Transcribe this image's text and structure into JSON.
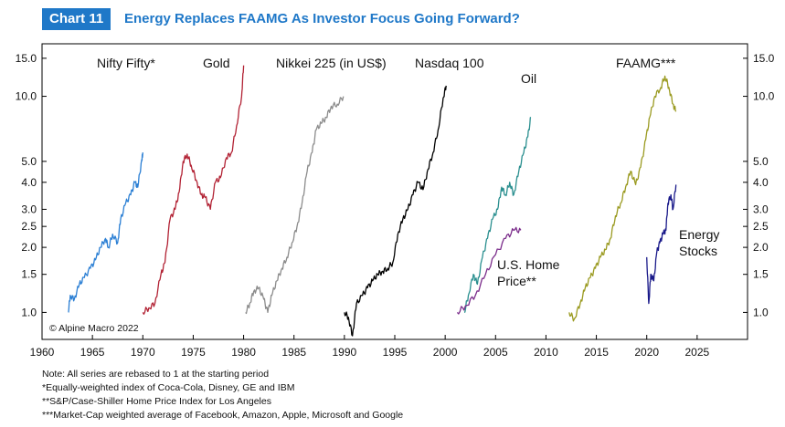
{
  "header": {
    "chart_label": "Chart 11",
    "title": "Energy Replaces FAAMG As Investor Focus Going Forward?"
  },
  "copyright": "© Alpine Macro 2022",
  "notes": [
    "Note: All series are rebased to 1 at the starting period",
    "*Equally-weighted index of Coca-Cola, Disney, GE and IBM",
    "**S&P/Case-Shiller Home Price Index for Los Angeles",
    "***Market-Cap weighted average of Facebook, Amazon, Apple, Microsoft and Google"
  ],
  "chart_data": {
    "type": "line",
    "x_label": "",
    "y_label": "",
    "y_scale": "log",
    "xlim": [
      1960,
      2030
    ],
    "ylim": [
      0.75,
      17.5
    ],
    "x_ticks": [
      1960,
      1965,
      1970,
      1975,
      1980,
      1985,
      1990,
      1995,
      2000,
      2005,
      2010,
      2015,
      2020,
      2025
    ],
    "y_ticks": [
      1.0,
      1.5,
      2.0,
      2.5,
      3.0,
      4.0,
      5.0,
      10.0,
      15.0
    ],
    "y_tick_labels": [
      "1.0",
      "1.5",
      "2.0",
      "2.5",
      "3.0",
      "4.0",
      "5.0",
      "10.0",
      "15.0"
    ],
    "grid": false,
    "legend": "none",
    "series": [
      {
        "name": "Nifty Fifty*",
        "color": "#2b7fd4",
        "points": [
          [
            1962.6,
            1.0
          ],
          [
            1962.8,
            1.2
          ],
          [
            1963.2,
            1.15
          ],
          [
            1963.7,
            1.35
          ],
          [
            1964.2,
            1.45
          ],
          [
            1964.8,
            1.6
          ],
          [
            1965.3,
            1.75
          ],
          [
            1965.8,
            2.0
          ],
          [
            1966.3,
            2.2
          ],
          [
            1966.6,
            2.0
          ],
          [
            1967.0,
            2.3
          ],
          [
            1967.5,
            2.1
          ],
          [
            1967.8,
            2.7
          ],
          [
            1968.3,
            3.2
          ],
          [
            1968.8,
            3.5
          ],
          [
            1969.2,
            4.0
          ],
          [
            1969.5,
            3.8
          ],
          [
            1969.9,
            5.1
          ],
          [
            1970.0,
            5.5
          ]
        ]
      },
      {
        "name": "Gold",
        "color": "#b22234",
        "points": [
          [
            1970.0,
            1.0
          ],
          [
            1970.6,
            1.05
          ],
          [
            1971.2,
            1.1
          ],
          [
            1971.8,
            1.5
          ],
          [
            1972.2,
            1.7
          ],
          [
            1972.7,
            2.7
          ],
          [
            1973.2,
            3.0
          ],
          [
            1973.6,
            3.6
          ],
          [
            1974.0,
            5.0
          ],
          [
            1974.4,
            5.4
          ],
          [
            1974.8,
            4.8
          ],
          [
            1975.3,
            4.1
          ],
          [
            1975.8,
            3.5
          ],
          [
            1976.2,
            3.4
          ],
          [
            1976.7,
            3.0
          ],
          [
            1977.2,
            4.0
          ],
          [
            1977.7,
            4.2
          ],
          [
            1978.3,
            5.2
          ],
          [
            1978.8,
            5.5
          ],
          [
            1979.3,
            7.3
          ],
          [
            1979.8,
            10.0
          ],
          [
            1980.0,
            13.9
          ]
        ]
      },
      {
        "name": "Nikkei 225 (in US$)",
        "color": "#8c8c8c",
        "points": [
          [
            1980.2,
            1.0
          ],
          [
            1980.6,
            1.1
          ],
          [
            1981.0,
            1.25
          ],
          [
            1981.5,
            1.3
          ],
          [
            1982.0,
            1.15
          ],
          [
            1982.4,
            1.0
          ],
          [
            1982.8,
            1.2
          ],
          [
            1983.3,
            1.4
          ],
          [
            1983.8,
            1.6
          ],
          [
            1984.3,
            1.8
          ],
          [
            1984.8,
            2.1
          ],
          [
            1985.3,
            2.5
          ],
          [
            1985.8,
            3.2
          ],
          [
            1986.3,
            4.5
          ],
          [
            1986.8,
            5.5
          ],
          [
            1987.2,
            7.0
          ],
          [
            1987.7,
            7.5
          ],
          [
            1988.2,
            8.0
          ],
          [
            1988.7,
            9.0
          ],
          [
            1989.3,
            9.2
          ],
          [
            1989.9,
            10.0
          ]
        ]
      },
      {
        "name": "Nasdaq 100",
        "color": "#000000",
        "points": [
          [
            1990.0,
            1.0
          ],
          [
            1990.4,
            0.95
          ],
          [
            1990.8,
            0.78
          ],
          [
            1991.2,
            1.1
          ],
          [
            1991.8,
            1.2
          ],
          [
            1992.3,
            1.3
          ],
          [
            1992.8,
            1.4
          ],
          [
            1993.3,
            1.5
          ],
          [
            1993.8,
            1.55
          ],
          [
            1994.3,
            1.6
          ],
          [
            1994.8,
            1.7
          ],
          [
            1995.3,
            2.3
          ],
          [
            1995.8,
            2.7
          ],
          [
            1996.3,
            3.0
          ],
          [
            1996.8,
            3.5
          ],
          [
            1997.3,
            4.0
          ],
          [
            1997.8,
            3.7
          ],
          [
            1998.3,
            4.6
          ],
          [
            1998.8,
            5.5
          ],
          [
            1999.3,
            7.0
          ],
          [
            1999.8,
            9.8
          ],
          [
            2000.1,
            11.2
          ]
        ]
      },
      {
        "name": "Oil",
        "color": "#2a8f8f",
        "points": [
          [
            2001.9,
            1.0
          ],
          [
            2002.3,
            1.2
          ],
          [
            2002.8,
            1.5
          ],
          [
            2003.2,
            1.35
          ],
          [
            2003.7,
            1.8
          ],
          [
            2004.2,
            2.2
          ],
          [
            2004.7,
            2.7
          ],
          [
            2005.2,
            3.0
          ],
          [
            2005.6,
            3.8
          ],
          [
            2006.0,
            3.5
          ],
          [
            2006.4,
            4.0
          ],
          [
            2006.8,
            3.5
          ],
          [
            2007.3,
            4.5
          ],
          [
            2007.8,
            5.5
          ],
          [
            2008.2,
            6.5
          ],
          [
            2008.5,
            8.0
          ]
        ]
      },
      {
        "name": "U.S. Home Price**",
        "color": "#7b2d8b",
        "points": [
          [
            2001.2,
            1.0
          ],
          [
            2002.0,
            1.07
          ],
          [
            2003.0,
            1.2
          ],
          [
            2004.0,
            1.5
          ],
          [
            2005.0,
            1.85
          ],
          [
            2006.0,
            2.2
          ],
          [
            2006.8,
            2.4
          ],
          [
            2007.5,
            2.4
          ]
        ]
      },
      {
        "name": "FAAMG***",
        "color": "#9a9a20",
        "points": [
          [
            2012.3,
            1.0
          ],
          [
            2012.8,
            0.93
          ],
          [
            2013.4,
            1.1
          ],
          [
            2013.9,
            1.3
          ],
          [
            2014.4,
            1.45
          ],
          [
            2014.9,
            1.6
          ],
          [
            2015.4,
            1.8
          ],
          [
            2015.9,
            1.95
          ],
          [
            2016.4,
            2.2
          ],
          [
            2016.9,
            2.8
          ],
          [
            2017.4,
            3.2
          ],
          [
            2017.9,
            3.8
          ],
          [
            2018.4,
            4.5
          ],
          [
            2018.9,
            3.9
          ],
          [
            2019.4,
            4.7
          ],
          [
            2019.9,
            6.3
          ],
          [
            2020.3,
            8.0
          ],
          [
            2020.8,
            10.0
          ],
          [
            2021.4,
            11.0
          ],
          [
            2021.8,
            12.4
          ],
          [
            2022.2,
            11.0
          ],
          [
            2022.6,
            9.2
          ],
          [
            2022.9,
            8.5
          ]
        ]
      },
      {
        "name": "Energy Stocks",
        "color": "#1a1a8a",
        "points": [
          [
            2020.0,
            1.8
          ],
          [
            2020.2,
            1.1
          ],
          [
            2020.4,
            1.5
          ],
          [
            2020.7,
            1.4
          ],
          [
            2021.0,
            1.9
          ],
          [
            2021.3,
            2.1
          ],
          [
            2021.6,
            2.3
          ],
          [
            2021.9,
            2.4
          ],
          [
            2022.1,
            3.2
          ],
          [
            2022.4,
            3.5
          ],
          [
            2022.6,
            3.0
          ],
          [
            2022.9,
            3.9
          ]
        ]
      }
    ],
    "labels": [
      {
        "text": "Nifty Fifty*",
        "series": "Nifty Fifty*"
      },
      {
        "text": "Gold",
        "series": "Gold"
      },
      {
        "text": "Nikkei 225 (in US$)",
        "series": "Nikkei 225 (in US$)"
      },
      {
        "text": "Nasdaq 100",
        "series": "Nasdaq 100"
      },
      {
        "text": "Oil",
        "series": "Oil"
      },
      {
        "text": "U.S. Home",
        "series": "U.S. Home Price**"
      },
      {
        "text": "Price**",
        "series": "U.S. Home Price**"
      },
      {
        "text": "FAAMG***",
        "series": "FAAMG***"
      },
      {
        "text": "Energy",
        "series": "Energy Stocks"
      },
      {
        "text": "Stocks",
        "series": "Energy Stocks"
      }
    ]
  }
}
